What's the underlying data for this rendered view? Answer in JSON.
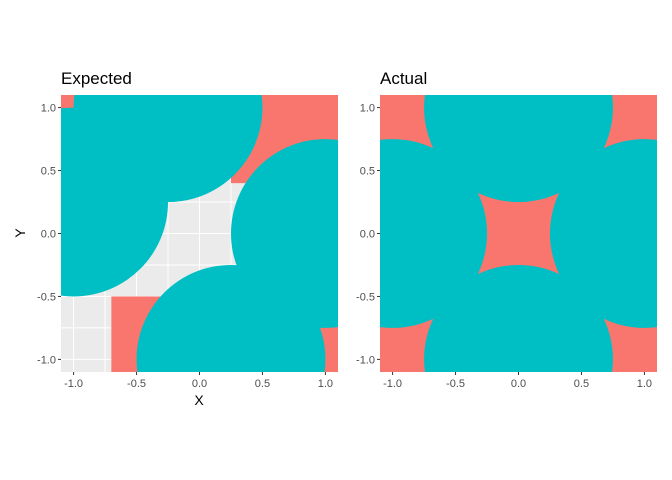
{
  "colors": {
    "panel_background": "#EBEBEB",
    "grid": "#FFFFFF",
    "red_fill": "#F8766D",
    "teal_fill": "#00BFC4"
  },
  "chart_data": [
    {
      "type": "area",
      "title": "Expected",
      "xlabel": "X",
      "ylabel": "Y",
      "xlim": [
        -1.1,
        1.1
      ],
      "ylim": [
        -1.1,
        1.1
      ],
      "xticks": [
        -1.0,
        -0.5,
        0.0,
        0.5,
        1.0
      ],
      "yticks": [
        -1.0,
        -0.5,
        0.0,
        0.5,
        1.0
      ],
      "xtick_labels": [
        "-1.0",
        "-0.5",
        "0.0",
        "0.5",
        "1.0"
      ],
      "ytick_labels": [
        "-1.0",
        "-0.5",
        "0.0",
        "0.5",
        "1.0"
      ],
      "grid": true,
      "legend": "none",
      "regions": [
        {
          "kind": "rect",
          "xmin": -1.1,
          "xmax": -0.3,
          "ymin": 0.4,
          "ymax": 1.1,
          "fill": "red"
        },
        {
          "kind": "rect",
          "xmin": 0.25,
          "xmax": 1.1,
          "ymin": 0.4,
          "ymax": 1.1,
          "fill": "red"
        },
        {
          "kind": "rect",
          "xmin": -0.7,
          "xmax": -0.2,
          "ymin": -1.1,
          "ymax": -0.5,
          "fill": "red"
        },
        {
          "kind": "circle",
          "cx": 1.0,
          "cy": -0.75,
          "r": 0.75,
          "fill": "red"
        },
        {
          "kind": "circle",
          "cx": -0.25,
          "cy": 1.0,
          "r": 0.75,
          "fill": "teal"
        },
        {
          "kind": "circle",
          "cx": 1.0,
          "cy": 0.0,
          "r": 0.75,
          "fill": "teal"
        },
        {
          "kind": "circle",
          "cx": -1.0,
          "cy": 0.25,
          "r": 0.75,
          "fill": "teal"
        },
        {
          "kind": "circle",
          "cx": 0.25,
          "cy": -1.0,
          "r": 0.75,
          "fill": "teal"
        }
      ]
    },
    {
      "type": "area",
      "title": "Actual",
      "xlabel": "",
      "ylabel": "",
      "xlim": [
        -1.1,
        1.1
      ],
      "ylim": [
        -1.1,
        1.1
      ],
      "xticks": [
        -1.0,
        -0.5,
        0.0,
        0.5,
        1.0
      ],
      "yticks": [
        -1.0,
        -0.5,
        0.0,
        0.5,
        1.0
      ],
      "xtick_labels": [
        "-1.0",
        "-0.5",
        "0.0",
        "0.5",
        "1.0"
      ],
      "ytick_labels": [
        "-1.0",
        "-0.5",
        "0.0",
        "0.5",
        "1.0"
      ],
      "grid": true,
      "legend": "none",
      "regions": [
        {
          "kind": "rect",
          "xmin": -1.1,
          "xmax": 1.1,
          "ymin": -1.1,
          "ymax": 1.1,
          "fill": "red"
        },
        {
          "kind": "circle",
          "cx": 0.0,
          "cy": 1.0,
          "r": 0.75,
          "fill": "teal"
        },
        {
          "kind": "circle",
          "cx": 1.0,
          "cy": 0.0,
          "r": 0.75,
          "fill": "teal"
        },
        {
          "kind": "circle",
          "cx": 0.0,
          "cy": -1.0,
          "r": 0.75,
          "fill": "teal"
        },
        {
          "kind": "circle",
          "cx": -1.0,
          "cy": 0.0,
          "r": 0.75,
          "fill": "teal"
        }
      ]
    }
  ]
}
